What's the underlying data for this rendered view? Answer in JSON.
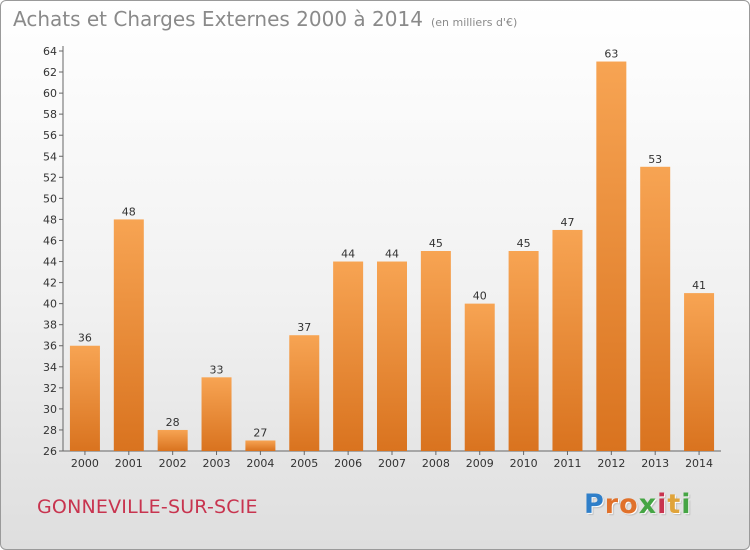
{
  "title": "Achats et Charges Externes 2000 à 2014",
  "unit": "(en milliers d'€)",
  "place": "GONNEVILLE-SUR-SCIE",
  "brand": {
    "letters": [
      "P",
      "r",
      "o",
      "x",
      "i",
      "t",
      "i"
    ],
    "colors": [
      "#2f7fc9",
      "#e0712b",
      "#e0712b",
      "#45a544",
      "#c8344f",
      "#e0a43a",
      "#45a544"
    ]
  },
  "colors": {
    "bar_top": "#f7a453",
    "bar_bottom": "#d9731f",
    "title": "#8a8a8a",
    "place": "#c8344f"
  },
  "chart_data": {
    "type": "bar",
    "categories": [
      "2000",
      "2001",
      "2002",
      "2003",
      "2004",
      "2005",
      "2006",
      "2007",
      "2008",
      "2009",
      "2010",
      "2011",
      "2012",
      "2013",
      "2014"
    ],
    "values": [
      36,
      48,
      28,
      33,
      27,
      37,
      44,
      44,
      45,
      40,
      45,
      47,
      63,
      53,
      41
    ],
    "ylim": [
      26,
      64
    ],
    "yticks": [
      26,
      28,
      30,
      32,
      34,
      36,
      38,
      40,
      42,
      44,
      46,
      48,
      50,
      52,
      54,
      56,
      58,
      60,
      62,
      64
    ],
    "grid": false,
    "data_labels": true
  }
}
